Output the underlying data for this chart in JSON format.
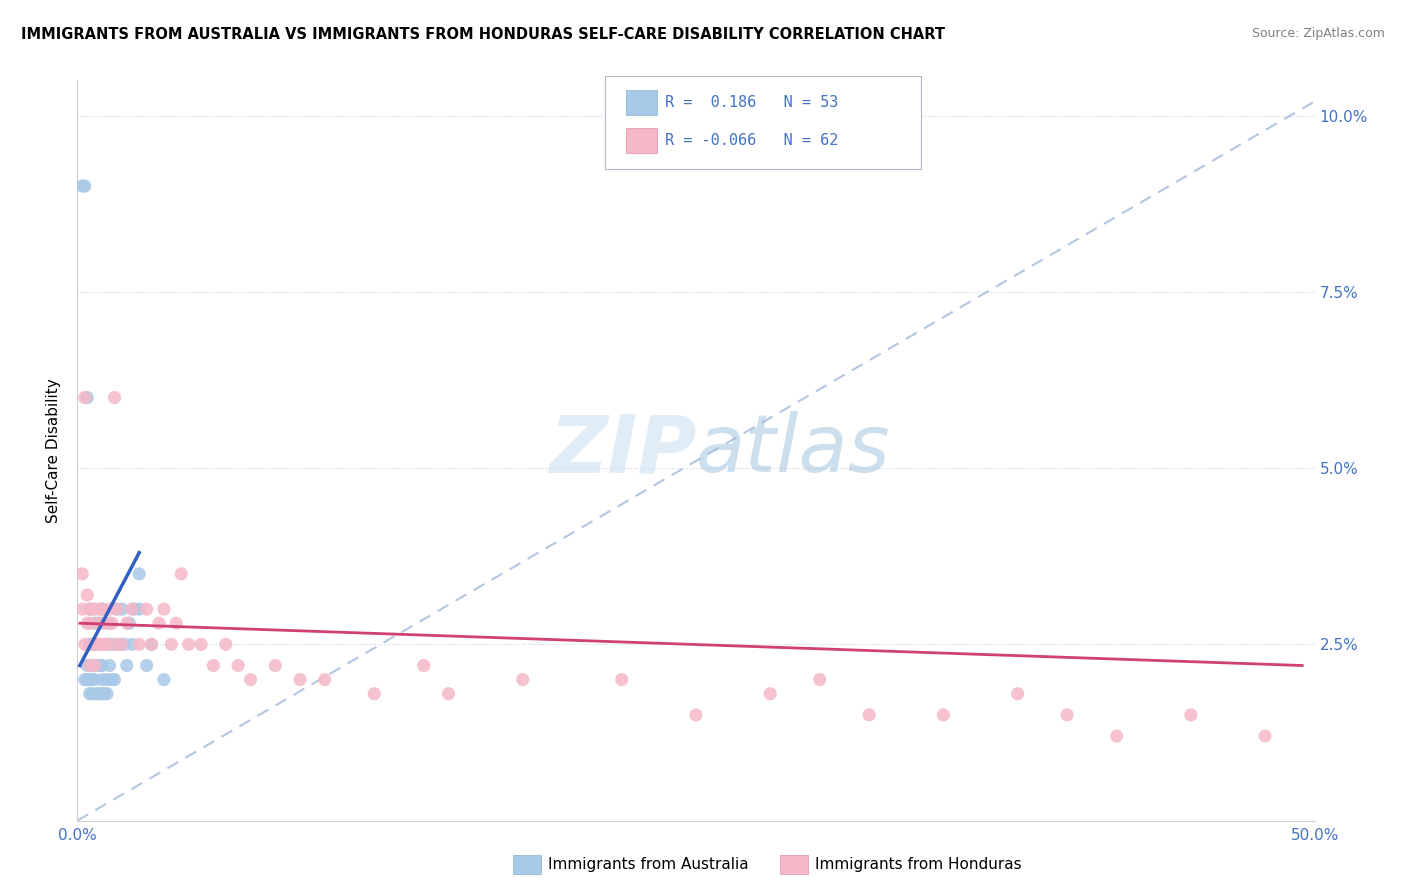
{
  "title": "IMMIGRANTS FROM AUSTRALIA VS IMMIGRANTS FROM HONDURAS SELF-CARE DISABILITY CORRELATION CHART",
  "source": "Source: ZipAtlas.com",
  "ylabel": "Self-Care Disability",
  "xlim": [
    0.0,
    0.5
  ],
  "ylim": [
    0.0,
    0.105
  ],
  "xticks": [
    0.0,
    0.05,
    0.1,
    0.15,
    0.2,
    0.25,
    0.3,
    0.35,
    0.4,
    0.45,
    0.5
  ],
  "xticklabels": [
    "0.0%",
    "",
    "",
    "",
    "",
    "",
    "",
    "",
    "",
    "",
    "50.0%"
  ],
  "yticks": [
    0.0,
    0.025,
    0.05,
    0.075,
    0.1
  ],
  "yticklabels": [
    "",
    "2.5%",
    "5.0%",
    "7.5%",
    "10.0%"
  ],
  "legend1_label": "R =  0.186   N = 53",
  "legend2_label": "R = -0.066   N = 62",
  "color_australia": "#a8c8e8",
  "color_honduras": "#f5b8c8",
  "line_australia": "#3060c0",
  "line_honduras": "#d04070",
  "aus_line_x": [
    0.001,
    0.025
  ],
  "aus_line_y": [
    0.022,
    0.038
  ],
  "hon_line_x": [
    0.001,
    0.495
  ],
  "hon_line_y": [
    0.028,
    0.022
  ],
  "ref_line_x": [
    0.0,
    0.5
  ],
  "ref_line_y": [
    0.0,
    0.102
  ],
  "australia_x": [
    0.002,
    0.003,
    0.003,
    0.004,
    0.004,
    0.004,
    0.005,
    0.005,
    0.005,
    0.005,
    0.005,
    0.006,
    0.006,
    0.006,
    0.006,
    0.007,
    0.007,
    0.007,
    0.007,
    0.008,
    0.008,
    0.008,
    0.009,
    0.009,
    0.009,
    0.01,
    0.01,
    0.01,
    0.01,
    0.011,
    0.011,
    0.012,
    0.012,
    0.012,
    0.013,
    0.013,
    0.014,
    0.014,
    0.015,
    0.015,
    0.016,
    0.017,
    0.018,
    0.019,
    0.02,
    0.021,
    0.022,
    0.023,
    0.025,
    0.025,
    0.028,
    0.03,
    0.035
  ],
  "australia_y": [
    0.09,
    0.09,
    0.02,
    0.02,
    0.022,
    0.06,
    0.018,
    0.02,
    0.022,
    0.025,
    0.03,
    0.018,
    0.02,
    0.022,
    0.025,
    0.02,
    0.022,
    0.025,
    0.028,
    0.018,
    0.022,
    0.025,
    0.018,
    0.022,
    0.028,
    0.018,
    0.02,
    0.022,
    0.03,
    0.018,
    0.025,
    0.018,
    0.02,
    0.025,
    0.022,
    0.028,
    0.02,
    0.025,
    0.02,
    0.025,
    0.03,
    0.025,
    0.03,
    0.025,
    0.022,
    0.028,
    0.025,
    0.03,
    0.03,
    0.035,
    0.022,
    0.025,
    0.02
  ],
  "honduras_x": [
    0.002,
    0.002,
    0.003,
    0.003,
    0.004,
    0.004,
    0.005,
    0.005,
    0.005,
    0.006,
    0.006,
    0.007,
    0.007,
    0.008,
    0.008,
    0.009,
    0.009,
    0.01,
    0.01,
    0.011,
    0.012,
    0.012,
    0.013,
    0.014,
    0.015,
    0.015,
    0.016,
    0.018,
    0.02,
    0.022,
    0.025,
    0.028,
    0.03,
    0.033,
    0.035,
    0.038,
    0.04,
    0.042,
    0.045,
    0.05,
    0.055,
    0.06,
    0.065,
    0.07,
    0.08,
    0.09,
    0.1,
    0.12,
    0.14,
    0.15,
    0.18,
    0.22,
    0.25,
    0.28,
    0.3,
    0.32,
    0.35,
    0.38,
    0.4,
    0.42,
    0.45,
    0.48
  ],
  "honduras_y": [
    0.03,
    0.035,
    0.025,
    0.06,
    0.028,
    0.032,
    0.03,
    0.028,
    0.022,
    0.03,
    0.025,
    0.022,
    0.03,
    0.028,
    0.025,
    0.03,
    0.025,
    0.028,
    0.03,
    0.025,
    0.028,
    0.025,
    0.03,
    0.028,
    0.025,
    0.06,
    0.03,
    0.025,
    0.028,
    0.03,
    0.025,
    0.03,
    0.025,
    0.028,
    0.03,
    0.025,
    0.028,
    0.035,
    0.025,
    0.025,
    0.022,
    0.025,
    0.022,
    0.02,
    0.022,
    0.02,
    0.02,
    0.018,
    0.022,
    0.018,
    0.02,
    0.02,
    0.015,
    0.018,
    0.02,
    0.015,
    0.015,
    0.018,
    0.015,
    0.012,
    0.015,
    0.012
  ]
}
